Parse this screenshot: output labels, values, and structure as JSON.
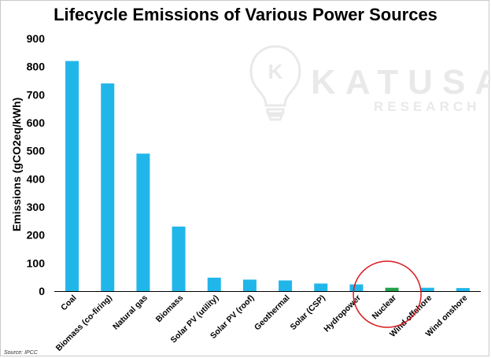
{
  "colors": {
    "bar": "#21b6ea",
    "highlight_bar": "#22a04a",
    "circle": "#d9191f",
    "axis": "#000000",
    "watermark": "#e9e9e9"
  },
  "watermark": {
    "logo_letter": "K",
    "brand": "KATUSA",
    "sub": "RESEARCH"
  },
  "source": "Source: IPCC",
  "chart_data": {
    "type": "bar",
    "title": "Lifecycle Emissions of Various Power Sources",
    "xlabel": "",
    "ylabel": "Emissions (gCO2eq/kWh)",
    "ylim": [
      0,
      900
    ],
    "yticks": [
      0,
      100,
      200,
      300,
      400,
      500,
      600,
      700,
      800,
      900
    ],
    "grid": false,
    "categories": [
      "Coal",
      "Biomass (co-firing)",
      "Natural gas",
      "Biomass",
      "Solar PV (utility)",
      "Solar PV (roof)",
      "Geothermal",
      "Solar (CSP)",
      "Hydropower",
      "Nuclear",
      "Wind offshore",
      "Wind onshore"
    ],
    "values": [
      820,
      740,
      490,
      230,
      48,
      41,
      38,
      27,
      24,
      12,
      12,
      11
    ],
    "highlight": "Nuclear",
    "annotation": "red circle around Nuclear"
  }
}
